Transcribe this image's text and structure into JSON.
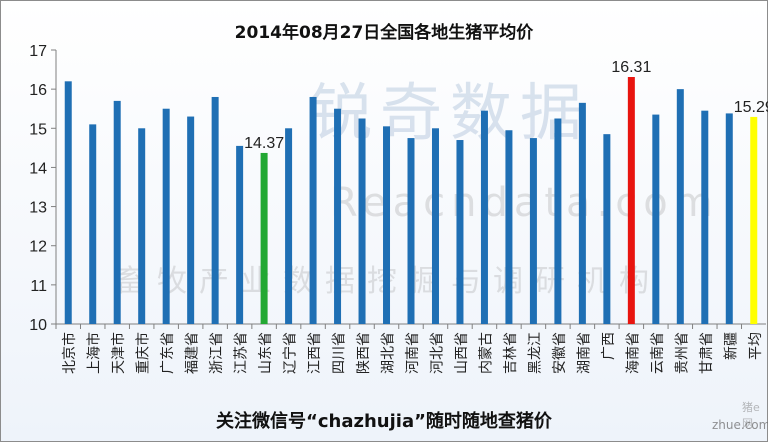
{
  "title": "2014年08月27日全国各地生猪平均价",
  "footer": "关注微信号“chazhujia”随时随地查猪价",
  "watermark": {
    "brand": "锐奇数据",
    "url": "Reacndata.com",
    "subtitle": "畜牧产业数据挖掘与调研机构",
    "corner": "zhue.com.cn",
    "corner_small": "猪e网"
  },
  "colors": {
    "default_bar": "#1f6fb4",
    "highlight_shandong": "#22a833",
    "highlight_hainan": "#e8140f",
    "highlight_average": "#ffff00"
  },
  "chart_data": {
    "type": "bar",
    "title": "2014年08月27日全国各地生猪平均价",
    "categories": [
      "北京市",
      "上海市",
      "天津市",
      "重庆市",
      "广东省",
      "福建省",
      "浙江省",
      "江苏省",
      "山东省",
      "辽宁省",
      "江西省",
      "四川省",
      "陕西省",
      "湖北省",
      "河南省",
      "河北省",
      "山西省",
      "内蒙古",
      "吉林省",
      "黑龙江",
      "安徽省",
      "湖南省",
      "广西",
      "海南省",
      "云南省",
      "贵州省",
      "甘肃省",
      "新疆",
      "平均"
    ],
    "values": [
      16.2,
      15.1,
      15.7,
      15.0,
      15.5,
      15.3,
      15.8,
      14.55,
      14.37,
      15.0,
      15.8,
      15.5,
      15.25,
      15.05,
      14.75,
      15.0,
      14.7,
      15.45,
      14.95,
      14.75,
      15.25,
      15.65,
      14.85,
      16.31,
      15.35,
      16.0,
      15.45,
      15.38,
      15.29
    ],
    "bar_colors": [
      "#1f6fb4",
      "#1f6fb4",
      "#1f6fb4",
      "#1f6fb4",
      "#1f6fb4",
      "#1f6fb4",
      "#1f6fb4",
      "#1f6fb4",
      "#22a833",
      "#1f6fb4",
      "#1f6fb4",
      "#1f6fb4",
      "#1f6fb4",
      "#1f6fb4",
      "#1f6fb4",
      "#1f6fb4",
      "#1f6fb4",
      "#1f6fb4",
      "#1f6fb4",
      "#1f6fb4",
      "#1f6fb4",
      "#1f6fb4",
      "#1f6fb4",
      "#e8140f",
      "#1f6fb4",
      "#1f6fb4",
      "#1f6fb4",
      "#1f6fb4",
      "#ffff00"
    ],
    "ylim": [
      10,
      17
    ],
    "yticks": [
      10,
      11,
      12,
      13,
      14,
      15,
      16,
      17
    ],
    "data_labels": [
      {
        "category": "山东省",
        "text": "14.37"
      },
      {
        "category": "海南省",
        "text": "16.31"
      },
      {
        "category": "平均",
        "text": "15.29"
      }
    ],
    "grid": false,
    "legend": "none"
  }
}
